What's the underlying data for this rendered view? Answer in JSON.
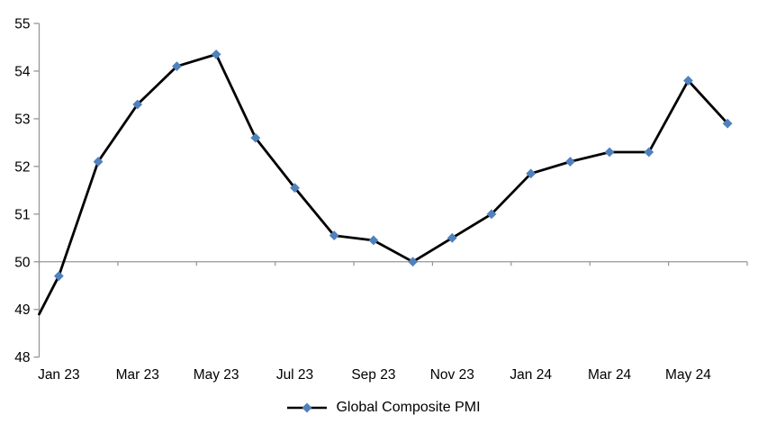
{
  "chart_data": {
    "type": "line",
    "title": "",
    "categories": [
      "Jan 23",
      "Feb 23",
      "Mar 23",
      "Apr 23",
      "May 23",
      "Jun 23",
      "Jul 23",
      "Aug 23",
      "Sep 23",
      "Oct 23",
      "Nov 23",
      "Dec 23",
      "Jan 24",
      "Feb 24",
      "Mar 24",
      "Apr 24",
      "May 24",
      "Jun 24"
    ],
    "series": [
      {
        "name": "Global Composite PMI",
        "values": [
          49.7,
          52.1,
          53.3,
          54.1,
          54.35,
          52.6,
          51.55,
          50.55,
          50.45,
          50.0,
          50.5,
          51.0,
          51.85,
          52.1,
          52.3,
          52.3,
          53.8,
          52.9
        ],
        "line_enters_left_edge_at_value": 48.9
      }
    ],
    "x_tick_labels": [
      "Jan 23",
      "Mar 23",
      "May 23",
      "Jul 23",
      "Sep 23",
      "Nov 23",
      "Jan 24",
      "Mar 24",
      "May 24"
    ],
    "x_tick_label_every_n_categories": 2,
    "y_ticks": [
      48,
      49,
      50,
      51,
      52,
      53,
      54,
      55
    ],
    "ylim": [
      48,
      55
    ],
    "x_axis_crosses_at": 50,
    "grid": "off",
    "legend": {
      "label": "Global Composite PMI",
      "position": "bottom-center"
    },
    "marker_shape": "diamond",
    "colors": {
      "line": "#000000",
      "marker": "#4F81BD",
      "axis": "#969696",
      "text": "#000000"
    }
  }
}
